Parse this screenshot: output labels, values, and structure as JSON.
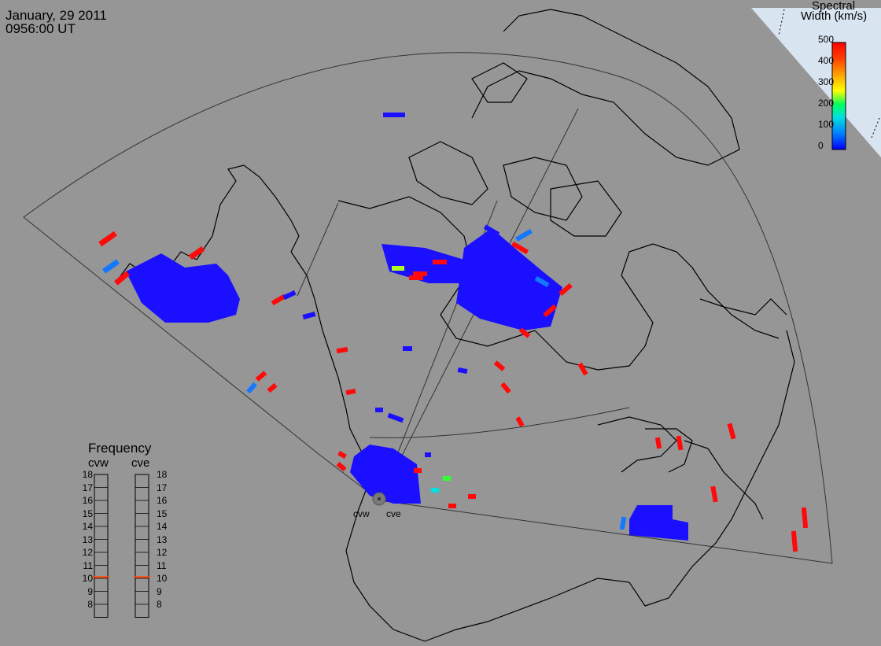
{
  "header": {
    "date": "January, 29 2011",
    "time": "0956:00 UT"
  },
  "colorbar": {
    "title_line1": "Spectral",
    "title_line2": "Width (km/s)",
    "ticks": [
      "500",
      "400",
      "300",
      "200",
      "100",
      "0"
    ],
    "min": 0,
    "max": 500,
    "colors": [
      "#0000ff",
      "#0080ff",
      "#00e0e0",
      "#00ff60",
      "#80ff00",
      "#ffff00",
      "#ffa000",
      "#ff4000",
      "#ff0000"
    ]
  },
  "frequency": {
    "title": "Frequency",
    "radars": [
      {
        "name": "cvw",
        "selected_mhz": 11
      },
      {
        "name": "cve",
        "selected_mhz": 11
      }
    ],
    "scale": [
      "18",
      "17",
      "16",
      "15",
      "14",
      "13",
      "12",
      "11",
      "10",
      "9",
      "8"
    ]
  },
  "radars": {
    "west_label": "cvw",
    "east_label": "cve"
  },
  "colors": {
    "background": "#969696",
    "coast": "#000000",
    "fov_outline": "#333333",
    "low_width": "#1a10ff",
    "mid_width": "#1478ff",
    "high_width": "#ff0a0a",
    "indicator": "#ff4400"
  }
}
